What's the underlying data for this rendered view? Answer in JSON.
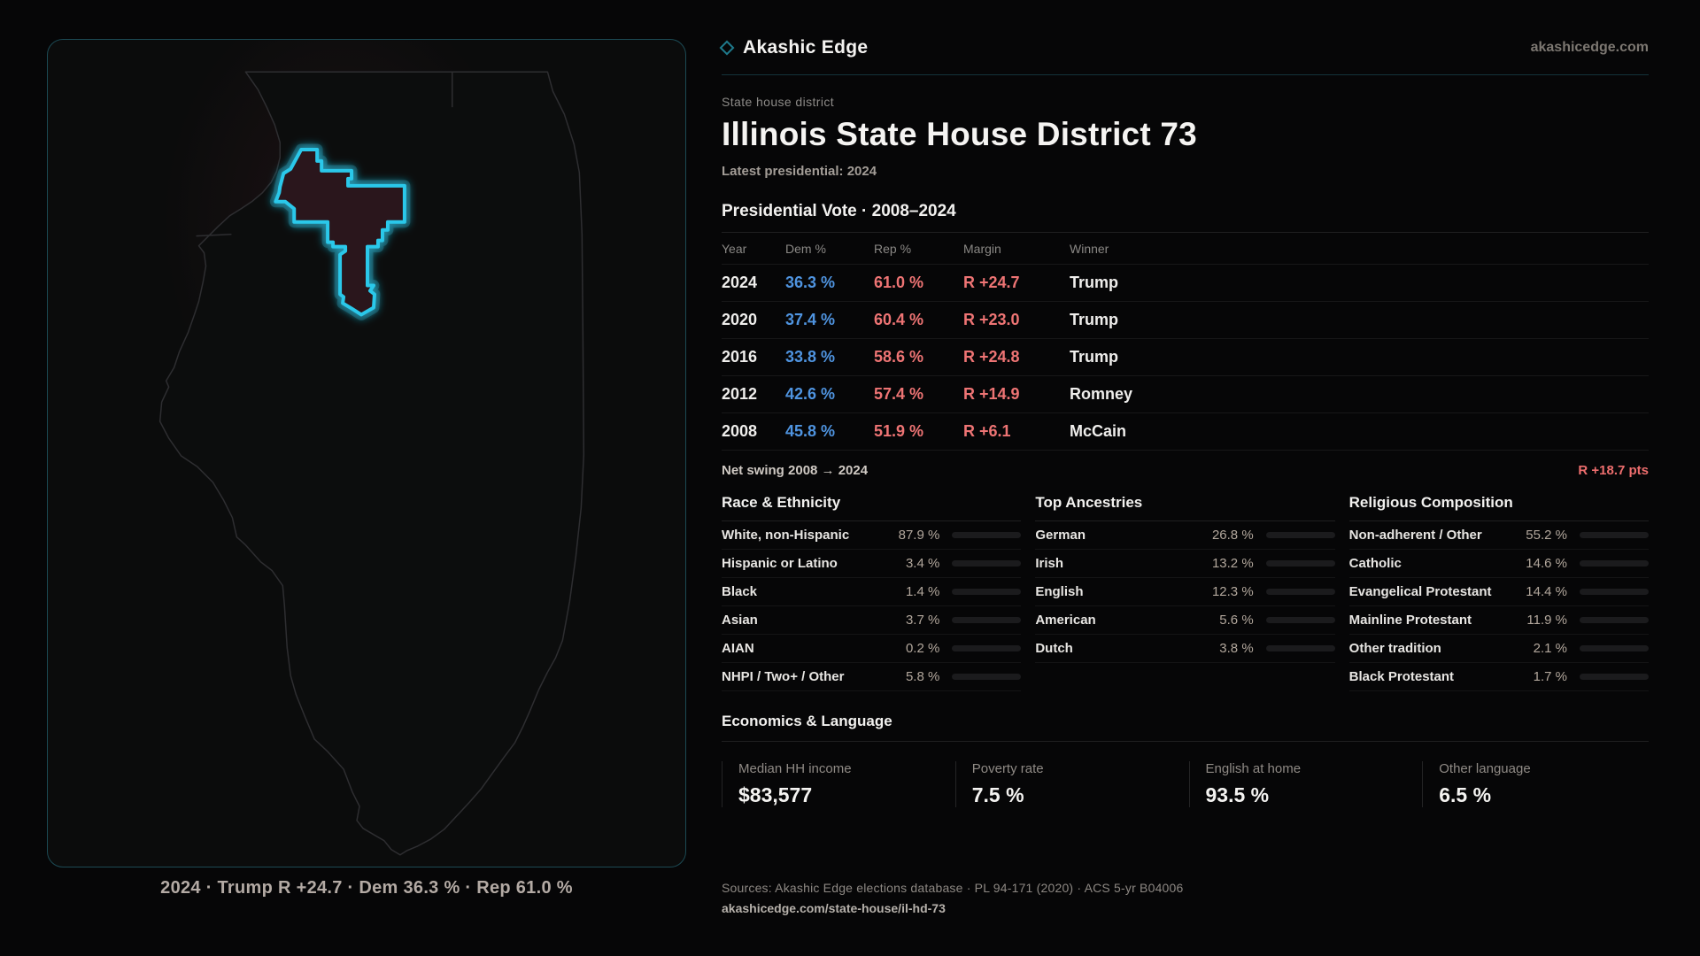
{
  "brand": {
    "name": "Akashic Edge",
    "domain": "akashicedge.com",
    "accent_teal": "#1e7a8c",
    "accent_cyan": "#2ac8ea",
    "dem_blue": "#4f94e0",
    "rep_red": "#ee7474"
  },
  "page": {
    "eyebrow": "State house district",
    "title": "Illinois State House District 73",
    "latest": "Latest presidential: 2024"
  },
  "vote_table": {
    "title": "Presidential Vote · 2008–2024",
    "columns": {
      "year": "Year",
      "dem": "Dem %",
      "rep": "Rep %",
      "margin": "Margin",
      "winner": "Winner"
    },
    "rows": [
      {
        "year": "2024",
        "dem": "36.3 %",
        "rep": "61.0 %",
        "margin": "R +24.7",
        "winner": "Trump"
      },
      {
        "year": "2020",
        "dem": "37.4 %",
        "rep": "60.4 %",
        "margin": "R +23.0",
        "winner": "Trump"
      },
      {
        "year": "2016",
        "dem": "33.8 %",
        "rep": "58.6 %",
        "margin": "R +24.8",
        "winner": "Trump"
      },
      {
        "year": "2012",
        "dem": "42.6 %",
        "rep": "57.4 %",
        "margin": "R +14.9",
        "winner": "Romney"
      },
      {
        "year": "2008",
        "dem": "45.8 %",
        "rep": "51.9 %",
        "margin": "R +6.1",
        "winner": "McCain"
      }
    ]
  },
  "net_swing": {
    "label": "Net swing 2008 → 2024",
    "value": "R +18.7 pts"
  },
  "chart_data": [
    {
      "type": "bar",
      "title": "Race & Ethnicity",
      "categories": [
        "White, non-Hispanic",
        "Hispanic or Latino",
        "Black",
        "Asian",
        "AIAN",
        "NHPI / Two+ / Other"
      ],
      "values": [
        87.9,
        3.4,
        1.4,
        3.7,
        0.2,
        5.8
      ],
      "xlim": [
        0,
        100
      ],
      "unit": "%"
    },
    {
      "type": "bar",
      "title": "Top Ancestries",
      "categories": [
        "German",
        "Irish",
        "English",
        "American",
        "Dutch"
      ],
      "values": [
        26.8,
        13.2,
        12.3,
        5.6,
        3.8
      ],
      "xlim": [
        0,
        100
      ],
      "unit": "%"
    },
    {
      "type": "bar",
      "title": "Religious Composition",
      "categories": [
        "Non-adherent / Other",
        "Catholic",
        "Evangelical Protestant",
        "Mainline Protestant",
        "Other tradition",
        "Black Protestant"
      ],
      "values": [
        55.2,
        14.6,
        14.4,
        11.9,
        2.1,
        1.7
      ],
      "xlim": [
        0,
        100
      ],
      "unit": "%"
    }
  ],
  "demographics": [
    {
      "title": "Race & Ethnicity",
      "rows": [
        {
          "label": "White, non-Hispanic",
          "value": "87.9 %",
          "pct": 87.9
        },
        {
          "label": "Hispanic or Latino",
          "value": "3.4 %",
          "pct": 3.4
        },
        {
          "label": "Black",
          "value": "1.4 %",
          "pct": 1.4
        },
        {
          "label": "Asian",
          "value": "3.7 %",
          "pct": 3.7
        },
        {
          "label": "AIAN",
          "value": "0.2 %",
          "pct": 0.2
        },
        {
          "label": "NHPI / Two+ / Other",
          "value": "5.8 %",
          "pct": 5.8
        }
      ]
    },
    {
      "title": "Top Ancestries",
      "rows": [
        {
          "label": "German",
          "value": "26.8 %",
          "pct": 26.8
        },
        {
          "label": "Irish",
          "value": "13.2 %",
          "pct": 13.2
        },
        {
          "label": "English",
          "value": "12.3 %",
          "pct": 12.3
        },
        {
          "label": "American",
          "value": "5.6 %",
          "pct": 5.6
        },
        {
          "label": "Dutch",
          "value": "3.8 %",
          "pct": 3.8
        }
      ]
    },
    {
      "title": "Religious Composition",
      "rows": [
        {
          "label": "Non-adherent / Other",
          "value": "55.2 %",
          "pct": 55.2
        },
        {
          "label": "Catholic",
          "value": "14.6 %",
          "pct": 14.6
        },
        {
          "label": "Evangelical Protestant",
          "value": "14.4 %",
          "pct": 14.4
        },
        {
          "label": "Mainline Protestant",
          "value": "11.9 %",
          "pct": 11.9
        },
        {
          "label": "Other tradition",
          "value": "2.1 %",
          "pct": 2.1
        },
        {
          "label": "Black Protestant",
          "value": "1.7 %",
          "pct": 1.7
        }
      ]
    }
  ],
  "economics": {
    "title": "Economics & Language",
    "stats": [
      {
        "label": "Median HH income",
        "value": "$83,577"
      },
      {
        "label": "Poverty rate",
        "value": "7.5 %"
      },
      {
        "label": "English at home",
        "value": "93.5 %"
      },
      {
        "label": "Other language",
        "value": "6.5 %"
      }
    ]
  },
  "map": {
    "caption": "2024 · Trump R +24.7 · Dem 36.3 % · Rep 61.0 %"
  },
  "footer": {
    "sources": "Sources: Akashic Edge elections database · PL 94-171 (2020) · ACS 5-yr B04006",
    "permalink": "akashicedge.com/state-house/il-hd-73"
  }
}
